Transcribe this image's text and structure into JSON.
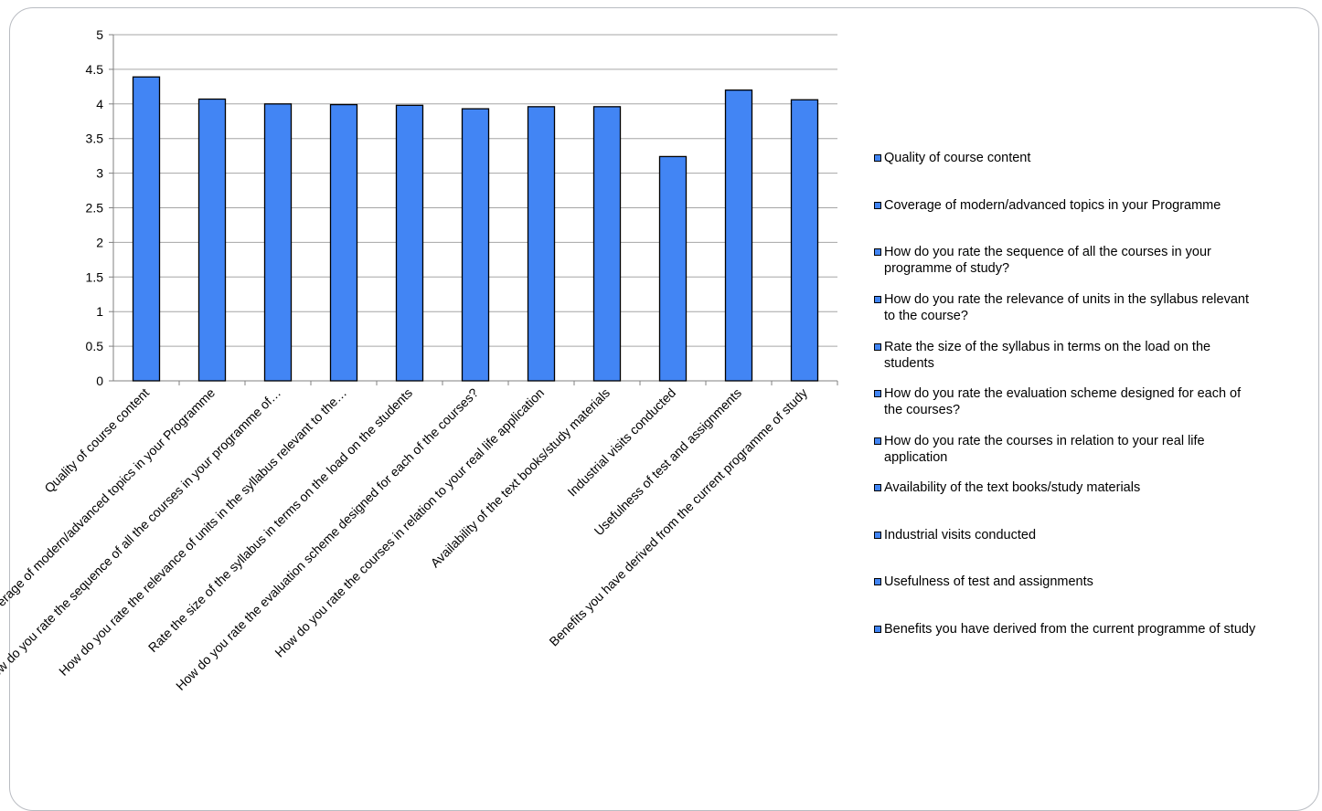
{
  "chart_data": {
    "type": "bar",
    "categories": [
      "Quality of course content",
      "Coverage of modern/advanced topics in your Programme",
      "How do you rate the sequence of all the courses in your programme of study?",
      "How do you rate the relevance of units in the syllabus relevant to the course?",
      "Rate the size of the syllabus in terms on the load on the students",
      "How do you rate the evaluation scheme designed for each of the courses?",
      "How do you rate the courses in relation to your real life application",
      "Availability of the text books/study materials",
      "Industrial visits conducted",
      "Usefulness of test and assignments",
      "Benefits you have derived from the current programme of study"
    ],
    "tick_labels": [
      "Quality of course content",
      "Coverage of modern/advanced topics in your Programme",
      "How do you rate the sequence of all the courses in your programme of…",
      "How do you rate the relevance of units in the syllabus relevant to the…",
      "Rate the size of the syllabus in terms on the load on the students",
      "How do you rate the evaluation scheme designed for each of the courses?",
      "How do you rate the courses in relation to your real life application",
      "Availability of the text books/study materials",
      "Industrial visits conducted",
      "Usefulness of test and assignments",
      "Benefits you have derived from the current programme of study"
    ],
    "values": [
      4.39,
      4.07,
      4.0,
      3.99,
      3.98,
      3.93,
      3.96,
      3.96,
      3.24,
      4.2,
      4.06
    ],
    "ylim": [
      0,
      5
    ],
    "yticks": [
      "0",
      "0.5",
      "1",
      "1.5",
      "2",
      "2.5",
      "3",
      "3.5",
      "4",
      "4.5",
      "5"
    ],
    "grid": true,
    "legend_placement": "right",
    "legend": [
      [
        "Quality of course content"
      ],
      [
        "Coverage of modern/advanced topics in your Programme"
      ],
      [
        "How do you rate the sequence of all the courses in your",
        "programme of study?"
      ],
      [
        "How do you rate the relevance of units in the syllabus relevant",
        "to the course?"
      ],
      [
        "Rate the size of the syllabus in terms on the load on the",
        "students"
      ],
      [
        "How do you rate the evaluation scheme designed for each of",
        "the courses?"
      ],
      [
        "How do you rate the courses in relation to your real life",
        "application"
      ],
      [
        "Availability of the text books/study materials"
      ],
      [
        "Industrial visits conducted"
      ],
      [
        "Usefulness of test and assignments"
      ],
      [
        "Benefits you have derived from the current programme of study"
      ]
    ],
    "colors": {
      "bar_fill": "#4285f4",
      "bar_stroke": "#000000",
      "grid": "#a6a6a6",
      "axis": "#808080",
      "text": "#000000"
    }
  }
}
